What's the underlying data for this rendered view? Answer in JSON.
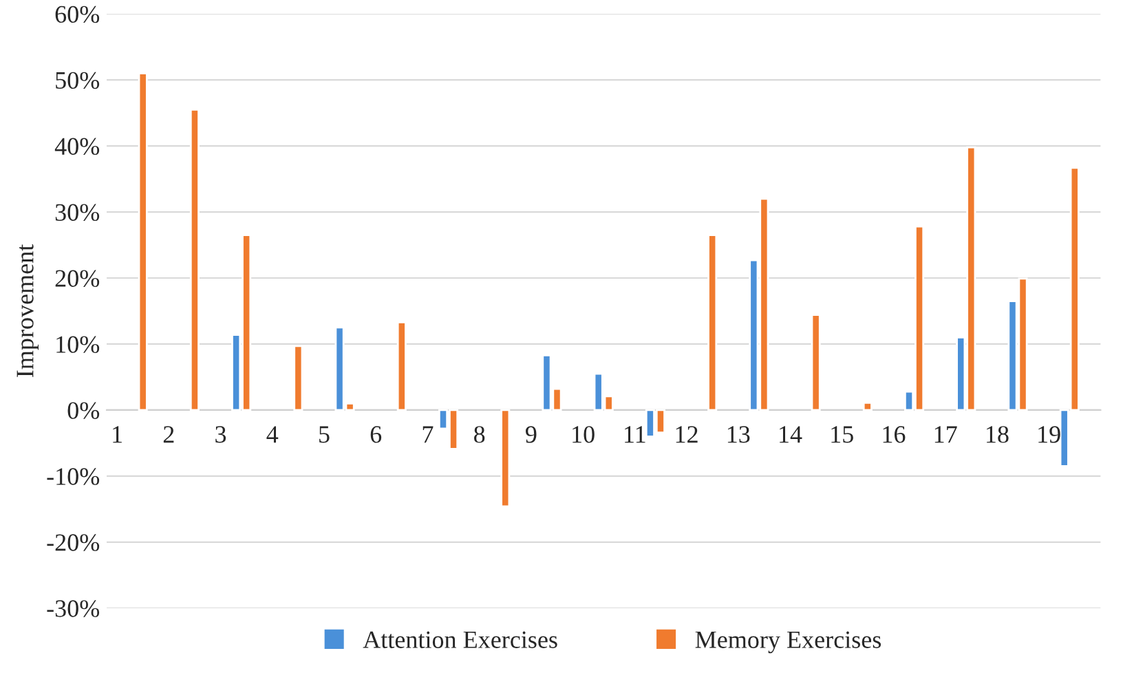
{
  "chart_data": {
    "type": "bar",
    "ylabel": "Improvement",
    "categories": [
      "1",
      "2",
      "3",
      "4",
      "5",
      "6",
      "7",
      "8",
      "9",
      "10",
      "11",
      "12",
      "13",
      "14",
      "15",
      "16",
      "17",
      "18",
      "19"
    ],
    "series": [
      {
        "name": "Attention Exercises",
        "color": "#4a90d9",
        "values": [
          null,
          null,
          11.4,
          null,
          12.5,
          null,
          -2.8,
          null,
          8.3,
          5.5,
          -4.0,
          null,
          22.7,
          null,
          null,
          2.8,
          11.0,
          16.5,
          -8.5
        ]
      },
      {
        "name": "Memory Exercises",
        "color": "#f07b2e",
        "values": [
          51,
          45.5,
          26.5,
          9.7,
          1.0,
          13.3,
          -5.9,
          -14.6,
          3.2,
          2.1,
          -3.4,
          26.5,
          32.0,
          14.4,
          1.1,
          27.8,
          39.8,
          19.9,
          36.7
        ]
      }
    ],
    "ylim": [
      -30,
      60
    ],
    "yticks": [
      {
        "value": -30,
        "label": "-30%"
      },
      {
        "value": -20,
        "label": "-20%"
      },
      {
        "value": -10,
        "label": "-10%"
      },
      {
        "value": 0,
        "label": "0%"
      },
      {
        "value": 10,
        "label": "10%"
      },
      {
        "value": 20,
        "label": "20%"
      },
      {
        "value": 30,
        "label": "30%"
      },
      {
        "value": 40,
        "label": "40%"
      },
      {
        "value": 50,
        "label": "50%"
      },
      {
        "value": 60,
        "label": "60%"
      }
    ],
    "grid": "y",
    "legend": "bottom"
  }
}
